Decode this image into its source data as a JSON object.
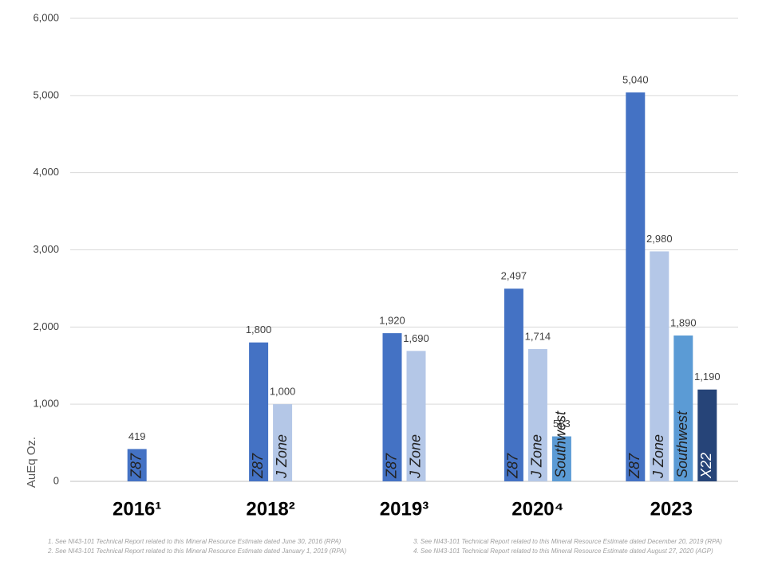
{
  "chart_data": {
    "type": "bar",
    "categories": [
      "2016¹",
      "2018²",
      "2019³",
      "2020⁴",
      "2023"
    ],
    "y_label": "AuEq Oz.",
    "series": [
      {
        "name": "Z87",
        "color": "#4472c4",
        "values": [
          419,
          1800,
          1920,
          2497,
          5040
        ],
        "value_labels": [
          "419",
          "1,800",
          "1,920",
          "2,497",
          "5,040"
        ]
      },
      {
        "name": "J Zone",
        "color": "#b4c7e7",
        "values": [
          null,
          1000,
          1690,
          1714,
          2980
        ],
        "value_labels": [
          null,
          "1,000",
          "1,690",
          "1,714",
          "2,980"
        ]
      },
      {
        "name": "Southwest",
        "color": "#5b9bd5",
        "values": [
          null,
          null,
          null,
          583,
          1890
        ],
        "value_labels": [
          null,
          null,
          null,
          "583",
          "1,890"
        ]
      },
      {
        "name": "X22",
        "color": "#264478",
        "values": [
          null,
          null,
          null,
          null,
          1190
        ],
        "value_labels": [
          null,
          null,
          null,
          null,
          "1,190"
        ]
      }
    ],
    "ylim": [
      0,
      6000
    ],
    "yticks": [
      0,
      {
        "value": 1000,
        "label": "1,000"
      },
      {
        "value": 2000,
        "label": "2,000"
      },
      {
        "value": 3000,
        "label": "3,000"
      },
      {
        "value": 4000,
        "label": "4,000"
      },
      {
        "value": 5000,
        "label": "5,000"
      },
      {
        "value": 6000,
        "label": "6,000"
      }
    ],
    "grid": true,
    "footnotes": [
      "1.  See NI43-101 Technical Report related to this Mineral Resource Estimate dated June 30, 2016 (RPA)",
      "2.  See NI43-101 Technical Report related to this Mineral Resource Estimate dated January 1, 2019 (RPA)",
      "3.  See NI43-101 Technical Report related to this Mineral Resource Estimate dated December 20, 2019 (RPA)",
      "4.  See NI43-101 Technical Report related to this Mineral Resource Estimate dated August 27, 2020 (AGP)"
    ]
  }
}
